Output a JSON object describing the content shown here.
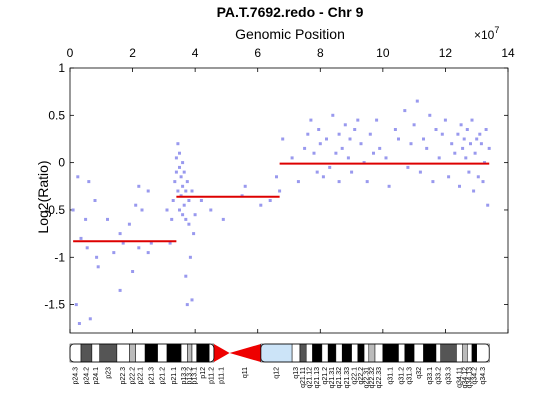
{
  "chart_data": {
    "type": "scatter",
    "title": "PA.T.7692.redo - Chr 9",
    "xlabel": "Genomic Position",
    "ylabel": "Log2(Ratio)",
    "x_exponent_label": "×10",
    "x_exponent_power": "7",
    "x_scale": 10000000,
    "xlim": [
      0,
      14
    ],
    "ylim": [
      -1.8,
      1
    ],
    "x_ticks": [
      0,
      2,
      4,
      6,
      8,
      10,
      12,
      14
    ],
    "x_tick_labels": [
      "0",
      "2",
      "4",
      "6",
      "8",
      "10",
      "12",
      "14"
    ],
    "y_ticks": [
      -1.5,
      -1,
      -0.5,
      0,
      0.5,
      1
    ],
    "y_tick_labels": [
      "-1.5",
      "-1",
      "-0.5",
      "0",
      "0.5",
      "1"
    ],
    "grid": false,
    "colors": {
      "points": "#9999ee",
      "segments": "#dd0000",
      "axis": "#000000"
    },
    "segments": [
      {
        "x_start": 0.1,
        "x_end": 3.4,
        "value": -0.83
      },
      {
        "x_start": 3.4,
        "x_end": 6.7,
        "value": -0.36
      },
      {
        "x_start": 6.7,
        "x_end": 13.4,
        "value": -0.01
      }
    ],
    "points_x": [
      0.1,
      0.2,
      0.25,
      0.3,
      0.35,
      0.5,
      0.55,
      0.6,
      0.65,
      0.8,
      0.85,
      0.9,
      1.2,
      1.4,
      1.6,
      1.6,
      1.7,
      1.9,
      2.0,
      2.1,
      2.2,
      2.2,
      2.3,
      2.5,
      2.5,
      2.6,
      3.1,
      3.2,
      3.25,
      3.3,
      3.35,
      3.4,
      3.4,
      3.45,
      3.45,
      3.5,
      3.5,
      3.5,
      3.55,
      3.55,
      3.6,
      3.6,
      3.6,
      3.65,
      3.65,
      3.7,
      3.7,
      3.7,
      3.75,
      3.75,
      3.8,
      3.8,
      3.85,
      3.9,
      3.9,
      3.95,
      4.0,
      4.2,
      4.5,
      4.9,
      5.5,
      5.6,
      6.1,
      6.4,
      6.6,
      6.7,
      6.8,
      7.1,
      7.3,
      7.5,
      7.6,
      7.7,
      7.8,
      7.9,
      7.95,
      8.0,
      8.1,
      8.2,
      8.3,
      8.4,
      8.5,
      8.6,
      8.6,
      8.7,
      8.8,
      8.9,
      8.95,
      9.0,
      9.1,
      9.2,
      9.3,
      9.4,
      9.5,
      9.6,
      9.7,
      9.8,
      9.9,
      10.1,
      10.2,
      10.4,
      10.5,
      10.7,
      10.8,
      10.9,
      11.0,
      11.1,
      11.2,
      11.3,
      11.4,
      11.5,
      11.6,
      11.7,
      11.8,
      11.9,
      12.0,
      12.1,
      12.2,
      12.3,
      12.4,
      12.45,
      12.5,
      12.55,
      12.6,
      12.65,
      12.7,
      12.75,
      12.8,
      12.85,
      12.9,
      12.95,
      13.0,
      13.05,
      13.1,
      13.15,
      13.2,
      13.25,
      13.3,
      13.35,
      13.4
    ],
    "points_y": [
      -0.5,
      -1.5,
      -0.15,
      -1.7,
      -0.8,
      -0.6,
      -0.9,
      -0.2,
      -1.65,
      -0.4,
      -1.0,
      -1.1,
      -0.6,
      -0.95,
      -0.75,
      -1.35,
      -0.85,
      -0.65,
      -1.15,
      -0.45,
      -0.9,
      -0.25,
      -0.5,
      -0.95,
      -0.3,
      -0.85,
      -0.5,
      -0.85,
      -0.6,
      -0.4,
      -0.2,
      -0.1,
      0.05,
      -0.3,
      0.2,
      -0.5,
      -0.05,
      0.1,
      -0.15,
      -0.35,
      -0.55,
      -0.25,
      0.0,
      -0.45,
      -0.1,
      -0.6,
      -0.3,
      -1.2,
      -0.2,
      -1.5,
      -0.65,
      -0.4,
      -1.0,
      -0.3,
      -1.45,
      -0.75,
      -0.55,
      -0.4,
      -0.5,
      -0.6,
      -0.35,
      -0.25,
      -0.45,
      -0.4,
      -0.15,
      -0.3,
      0.25,
      0.05,
      -0.2,
      0.15,
      0.3,
      0.45,
      0.1,
      -0.1,
      0.35,
      0.2,
      -0.15,
      0.25,
      -0.05,
      0.5,
      0.1,
      0.3,
      -0.2,
      0.15,
      0.4,
      0.05,
      0.25,
      -0.1,
      0.35,
      0.45,
      0.2,
      0.0,
      -0.2,
      0.3,
      0.1,
      0.45,
      0.15,
      0.05,
      -0.25,
      0.35,
      0.25,
      0.55,
      -0.05,
      0.2,
      0.4,
      0.65,
      -0.1,
      0.25,
      0.15,
      0.5,
      -0.2,
      0.35,
      0.05,
      0.3,
      0.45,
      -0.15,
      0.2,
      0.1,
      0.3,
      -0.25,
      0.4,
      0.15,
      0.25,
      0.05,
      0.35,
      -0.1,
      0.2,
      0.45,
      -0.3,
      0.1,
      0.25,
      -0.15,
      0.3,
      0.2,
      -0.2,
      0.0,
      0.35,
      -0.45,
      0.15,
      0.4,
      -0.35
    ]
  },
  "ideogram": {
    "colors": {
      "dark": "#000000",
      "mid": "#555555",
      "light": "#bbbbbb",
      "white": "#ffffff",
      "centromere": "#ee0000",
      "stalk": "#cce4f8"
    },
    "bands": [
      {
        "label": "p24.3",
        "x_start": 0.0,
        "x_end": 0.35,
        "stain": "white"
      },
      {
        "label": "p24.2",
        "x_start": 0.35,
        "x_end": 0.7,
        "stain": "mid"
      },
      {
        "label": "p24.1",
        "x_start": 0.7,
        "x_end": 0.95,
        "stain": "white"
      },
      {
        "label": "p23",
        "x_start": 0.95,
        "x_end": 1.5,
        "stain": "mid"
      },
      {
        "label": "p22.3",
        "x_start": 1.5,
        "x_end": 1.9,
        "stain": "white"
      },
      {
        "label": "p22.2",
        "x_start": 1.9,
        "x_end": 2.1,
        "stain": "light"
      },
      {
        "label": "p22.1",
        "x_start": 2.1,
        "x_end": 2.4,
        "stain": "white"
      },
      {
        "label": "p21.3",
        "x_start": 2.4,
        "x_end": 2.8,
        "stain": "dark"
      },
      {
        "label": "p21.2",
        "x_start": 2.8,
        "x_end": 3.1,
        "stain": "white"
      },
      {
        "label": "p21.1",
        "x_start": 3.1,
        "x_end": 3.55,
        "stain": "dark"
      },
      {
        "label": "p13.3",
        "x_start": 3.55,
        "x_end": 3.75,
        "stain": "white"
      },
      {
        "label": "p13.2",
        "x_start": 3.75,
        "x_end": 3.9,
        "stain": "light"
      },
      {
        "label": "p13.1",
        "x_start": 3.9,
        "x_end": 4.05,
        "stain": "white"
      },
      {
        "label": "p12",
        "x_start": 4.05,
        "x_end": 4.45,
        "stain": "dark"
      },
      {
        "label": "p11.2",
        "x_start": 4.45,
        "x_end": 4.6,
        "stain": "white"
      },
      {
        "label": "p11.1",
        "x_start": 4.6,
        "x_end": 5.1,
        "stain": "centromere"
      },
      {
        "label": "q11",
        "x_start": 5.1,
        "x_end": 6.1,
        "stain": "centromere"
      },
      {
        "label": "q12",
        "x_start": 6.1,
        "x_end": 7.1,
        "stain": "stalk"
      },
      {
        "label": "q13",
        "x_start": 7.1,
        "x_end": 7.35,
        "stain": "white"
      },
      {
        "label": "q21.11",
        "x_start": 7.35,
        "x_end": 7.55,
        "stain": "mid"
      },
      {
        "label": "q21.12",
        "x_start": 7.55,
        "x_end": 7.75,
        "stain": "white"
      },
      {
        "label": "q21.13",
        "x_start": 7.75,
        "x_end": 8.05,
        "stain": "dark"
      },
      {
        "label": "q21.2",
        "x_start": 8.05,
        "x_end": 8.25,
        "stain": "white"
      },
      {
        "label": "q21.31",
        "x_start": 8.25,
        "x_end": 8.5,
        "stain": "dark"
      },
      {
        "label": "q21.32",
        "x_start": 8.5,
        "x_end": 8.7,
        "stain": "white"
      },
      {
        "label": "q21.33",
        "x_start": 8.7,
        "x_end": 9.0,
        "stain": "dark"
      },
      {
        "label": "q22.1",
        "x_start": 9.0,
        "x_end": 9.2,
        "stain": "white"
      },
      {
        "label": "q22.2",
        "x_start": 9.2,
        "x_end": 9.4,
        "stain": "dark"
      },
      {
        "label": "q22.31",
        "x_start": 9.4,
        "x_end": 9.55,
        "stain": "white"
      },
      {
        "label": "q22.32",
        "x_start": 9.55,
        "x_end": 9.75,
        "stain": "light"
      },
      {
        "label": "q22.33",
        "x_start": 9.75,
        "x_end": 10.0,
        "stain": "white"
      },
      {
        "label": "q31.1",
        "x_start": 10.0,
        "x_end": 10.5,
        "stain": "dark"
      },
      {
        "label": "q31.2",
        "x_start": 10.5,
        "x_end": 10.7,
        "stain": "white"
      },
      {
        "label": "q31.3",
        "x_start": 10.7,
        "x_end": 11.0,
        "stain": "dark"
      },
      {
        "label": "q32",
        "x_start": 11.0,
        "x_end": 11.3,
        "stain": "white"
      },
      {
        "label": "q33.1",
        "x_start": 11.3,
        "x_end": 11.7,
        "stain": "dark"
      },
      {
        "label": "q33.2",
        "x_start": 11.7,
        "x_end": 11.85,
        "stain": "white"
      },
      {
        "label": "q33.3",
        "x_start": 11.85,
        "x_end": 12.35,
        "stain": "mid"
      },
      {
        "label": "q34.11",
        "x_start": 12.35,
        "x_end": 12.55,
        "stain": "white"
      },
      {
        "label": "q34.12",
        "x_start": 12.55,
        "x_end": 12.7,
        "stain": "light"
      },
      {
        "label": "q34.13",
        "x_start": 12.7,
        "x_end": 12.85,
        "stain": "white"
      },
      {
        "label": "q34.2",
        "x_start": 12.85,
        "x_end": 13.0,
        "stain": "dark"
      },
      {
        "label": "q34.3",
        "x_start": 13.0,
        "x_end": 13.4,
        "stain": "white"
      }
    ]
  }
}
